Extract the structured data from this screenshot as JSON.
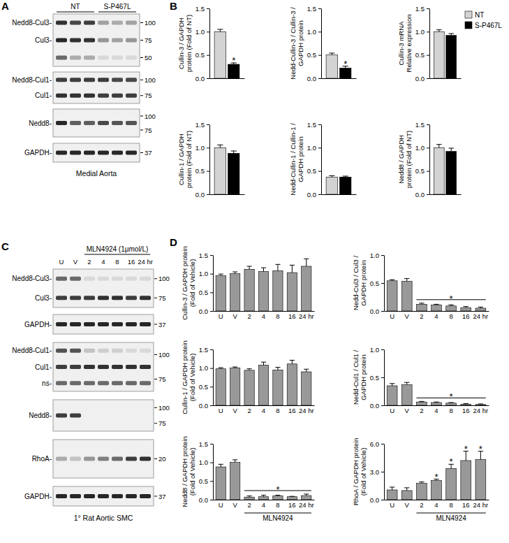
{
  "chart_data": [
    {
      "type": "bar",
      "ylabel": [
        "Cullin-3 / GAPDH",
        "protein (Fold of NT)"
      ],
      "categories": [
        null
      ],
      "series": [
        {
          "color": "#d3d3d3",
          "values": [
            1.0
          ],
          "errors": [
            0.05
          ]
        },
        {
          "color": "#000000",
          "values": [
            0.3
          ],
          "errors": [
            0.03
          ]
        }
      ],
      "ylim": [
        0,
        1.5
      ],
      "yticks": [
        {
          "value": 0,
          "label": "0.0"
        },
        0.5,
        {
          "value": 1,
          "label": "1.0"
        },
        1.5
      ],
      "annotations": [
        {
          "text": "*",
          "series": 1,
          "category": 0
        }
      ]
    },
    {
      "type": "bar",
      "ylabel": [
        "Nedd-Cullin-3 / Cullin-3 /",
        "GAPDH protein"
      ],
      "categories": [
        null
      ],
      "series": [
        {
          "color": "#d3d3d3",
          "values": [
            0.5
          ],
          "errors": [
            0.04
          ]
        },
        {
          "color": "#000000",
          "values": [
            0.22
          ],
          "errors": [
            0.04
          ]
        }
      ],
      "ylim": [
        0,
        1.5
      ],
      "yticks": [
        {
          "value": 0,
          "label": "0.0"
        },
        0.5,
        {
          "value": 1,
          "label": "1.0"
        },
        1.5
      ],
      "annotations": [
        {
          "text": "*",
          "series": 1,
          "category": 0
        }
      ]
    },
    {
      "type": "bar",
      "ylabel": [
        "Cullin-3 mRNA",
        "Relative expression"
      ],
      "categories": [
        null
      ],
      "legend": "right",
      "series": [
        {
          "name": "NT",
          "color": "#d3d3d3",
          "values": [
            1.0
          ],
          "errors": [
            0.04
          ]
        },
        {
          "name": "S-P467L",
          "color": "#000000",
          "values": [
            0.92
          ],
          "errors": [
            0.04
          ]
        }
      ],
      "ylim": [
        0,
        1.5
      ],
      "yticks": [
        {
          "value": 0,
          "label": "0.0"
        },
        0.5,
        {
          "value": 1,
          "label": "1.0"
        },
        1.5
      ]
    },
    {
      "type": "bar",
      "ylabel": [
        "Cullin-1 / GAPDH",
        "protein (Fold of NT)"
      ],
      "categories": [
        null
      ],
      "series": [
        {
          "color": "#d3d3d3",
          "values": [
            1.0
          ],
          "errors": [
            0.06
          ]
        },
        {
          "color": "#000000",
          "values": [
            0.88
          ],
          "errors": [
            0.05
          ]
        }
      ],
      "ylim": [
        0,
        1.5
      ],
      "yticks": [
        {
          "value": 0,
          "label": "0.0"
        },
        0.5,
        {
          "value": 1,
          "label": "1.0"
        },
        1.5
      ]
    },
    {
      "type": "bar",
      "ylabel": [
        "Nedd-Cullin-1 / Cullin-1 /",
        "GAPDH protein"
      ],
      "categories": [
        null
      ],
      "series": [
        {
          "color": "#d3d3d3",
          "values": [
            0.37
          ],
          "errors": [
            0.03
          ]
        },
        {
          "color": "#000000",
          "values": [
            0.37
          ],
          "errors": [
            0.02
          ]
        }
      ],
      "ylim": [
        0,
        1.5
      ],
      "yticks": [
        {
          "value": 0,
          "label": "0.0"
        },
        0.5,
        {
          "value": 1,
          "label": "1.0"
        },
        1.5
      ]
    },
    {
      "type": "bar",
      "ylabel": [
        "Nedd8 / GAPDH",
        "protein (Fold of NT)"
      ],
      "categories": [
        null
      ],
      "series": [
        {
          "color": "#d3d3d3",
          "values": [
            1.0
          ],
          "errors": [
            0.07
          ]
        },
        {
          "color": "#000000",
          "values": [
            0.92
          ],
          "errors": [
            0.07
          ]
        }
      ],
      "ylim": [
        0,
        1.5
      ],
      "yticks": [
        {
          "value": 0,
          "label": "0.0"
        },
        0.5,
        {
          "value": 1,
          "label": "1.0"
        },
        1.5
      ]
    },
    {
      "type": "bar",
      "ylabel": [
        "Cullin-3 / GAPDH protein",
        "(Fold of Vehicle)"
      ],
      "categories": [
        "U",
        "V",
        "2",
        "4",
        "8",
        "16",
        "24 hr"
      ],
      "series": [
        {
          "color": "#999999",
          "values": [
            0.95,
            1.0,
            1.12,
            1.06,
            1.08,
            1.03,
            1.2
          ],
          "errors": [
            0.04,
            0.05,
            0.08,
            0.1,
            0.17,
            0.2,
            0.2
          ]
        }
      ],
      "ylim": [
        0,
        1.5
      ],
      "yticks": [
        {
          "value": 0,
          "label": "0.0"
        },
        0.5,
        {
          "value": 1,
          "label": "1.0"
        },
        1.5
      ]
    },
    {
      "type": "bar",
      "ylabel": [
        "Nedd-Cul3 / Cul3 /",
        "GAPDH protein"
      ],
      "categories": [
        "U",
        "V",
        "2",
        "4",
        "8",
        "16",
        "24 hr"
      ],
      "series": [
        {
          "color": "#999999",
          "values": [
            0.54,
            0.53,
            0.12,
            0.11,
            0.09,
            0.06,
            0.05
          ],
          "errors": [
            0.02,
            0.05,
            0.02,
            0.01,
            0.02,
            0.02,
            0.02
          ]
        }
      ],
      "ylim": [
        0,
        1
      ],
      "yticks": [
        {
          "value": 0,
          "label": "0.0"
        },
        0.5,
        {
          "value": 1,
          "label": "1.0"
        }
      ],
      "annotations": [
        {
          "text": "*",
          "from": 2,
          "to": 6
        }
      ]
    },
    {
      "type": "bar",
      "ylabel": [
        "Cullin-1 / GAPDH protein",
        "(Fold of Vehicle)"
      ],
      "categories": [
        "U",
        "V",
        "2",
        "4",
        "8",
        "16",
        "24 hr"
      ],
      "series": [
        {
          "color": "#999999",
          "values": [
            0.98,
            1.0,
            0.94,
            1.08,
            0.95,
            1.11,
            0.9
          ],
          "errors": [
            0.03,
            0.03,
            0.04,
            0.08,
            0.07,
            0.1,
            0.07
          ]
        }
      ],
      "ylim": [
        0,
        1.5
      ],
      "yticks": [
        {
          "value": 0,
          "label": "0.0"
        },
        0.5,
        {
          "value": 1,
          "label": "1.0"
        },
        1.5
      ]
    },
    {
      "type": "bar",
      "ylabel": [
        "Nedd-Cul1 / Cul1 /",
        "GAPDH protein"
      ],
      "categories": [
        "U",
        "V",
        "2",
        "4",
        "8",
        "16",
        "24 hr"
      ],
      "series": [
        {
          "color": "#999999",
          "values": [
            0.35,
            0.37,
            0.06,
            0.05,
            0.04,
            0.02,
            0.015
          ],
          "errors": [
            0.04,
            0.04,
            0.01,
            0.01,
            0.01,
            0.01,
            0.01
          ]
        }
      ],
      "ylim": [
        0,
        1
      ],
      "yticks": [
        {
          "value": 0,
          "label": "0.0"
        },
        0.5,
        {
          "value": 1,
          "label": "1.0"
        }
      ],
      "annotations": [
        {
          "text": "*",
          "from": 2,
          "to": 6
        }
      ]
    },
    {
      "type": "bar",
      "ylabel": [
        "Nedd8 / GAPDH protein",
        "(Fold of Vehicle)"
      ],
      "categories": [
        "U",
        "V",
        "2",
        "4",
        "8",
        "16",
        "24 hr"
      ],
      "series": [
        {
          "color": "#999999",
          "values": [
            0.88,
            1.0,
            0.07,
            0.08,
            0.1,
            0.08,
            0.11
          ],
          "errors": [
            0.07,
            0.07,
            0.03,
            0.04,
            0.02,
            0.01,
            0.04
          ]
        }
      ],
      "ylim": [
        0,
        1.5
      ],
      "yticks": [
        {
          "value": 0,
          "label": "0.0"
        },
        0.5,
        {
          "value": 1,
          "label": "1.0"
        },
        1.5
      ],
      "annotations": [
        {
          "text": "*",
          "from": 2,
          "to": 6
        }
      ],
      "group_label": {
        "text": "MLN4924",
        "from": 2,
        "to": 6
      }
    },
    {
      "type": "bar",
      "ylabel": [
        "RhoA / GAPDH protein",
        "(Fold of Vehicle)"
      ],
      "categories": [
        "U",
        "V",
        "2",
        "4",
        "8",
        "16",
        "24 hr"
      ],
      "series": [
        {
          "color": "#999999",
          "values": [
            1.05,
            0.98,
            1.75,
            2.05,
            3.35,
            4.2,
            4.3
          ],
          "errors": [
            0.3,
            0.3,
            0.15,
            0.15,
            0.45,
            1.0,
            0.9
          ]
        }
      ],
      "ylim": [
        0,
        6
      ],
      "yticks": [
        {
          "value": 0,
          "label": "0.0"
        },
        {
          "value": 3,
          "label": "3.0"
        },
        {
          "value": 6,
          "label": "6.0"
        }
      ],
      "annotations": [
        {
          "text": "*",
          "category": 3
        },
        {
          "text": "*",
          "category": 4
        },
        {
          "text": "*",
          "category": 5
        },
        {
          "text": "*",
          "category": 6
        }
      ],
      "group_label": {
        "text": "MLN4924",
        "from": 2,
        "to": 6
      }
    }
  ],
  "panel_labels": [
    "A",
    "B",
    "C",
    "D"
  ],
  "blots": [
    {
      "caption": "Medial Aorta",
      "lane_groups": [
        {
          "label": "NT",
          "from": 0,
          "to": 2
        },
        {
          "label": "S-P467L",
          "from": 3,
          "to": 5
        }
      ],
      "rows": [
        {
          "bands": [
            {
              "label": "Nedd8-Cul3-",
              "intensity": [
                0.85,
                0.75,
                0.8,
                0.35,
                0.3,
                0.35
              ]
            },
            {
              "label": "Cul3-",
              "intensity": [
                0.9,
                0.85,
                0.85,
                0.4,
                0.35,
                0.4
              ]
            },
            {
              "label": null,
              "intensity": [
                0.6,
                0.3,
                0.3,
                0.1,
                0.1,
                0.1
              ]
            }
          ],
          "markers": [
            100,
            75,
            50
          ]
        },
        {
          "bands": [
            {
              "label": "Nedd8-Cul1-",
              "intensity": [
                0.8,
                0.8,
                0.8,
                0.8,
                0.75,
                0.75
              ]
            },
            {
              "label": "Cul1-",
              "intensity": [
                0.85,
                0.85,
                0.85,
                0.8,
                0.8,
                0.8
              ]
            }
          ],
          "markers": [
            100,
            75
          ]
        },
        {
          "bands": [
            {
              "label": "Nedd8-",
              "intensity": [
                0.9,
                0.65,
                0.65,
                0.75,
                0.7,
                0.7
              ]
            }
          ],
          "markers": [
            100,
            75
          ]
        },
        {
          "bands": [
            {
              "label": "GAPDH-",
              "intensity": [
                0.9,
                0.9,
                0.9,
                0.9,
                0.9,
                0.9
              ]
            }
          ],
          "markers": [
            37
          ]
        }
      ]
    },
    {
      "caption": "1° Rat Aortic SMC",
      "lane_labels": [
        "U",
        "V",
        "2",
        "4",
        "8",
        "16",
        "24 hr"
      ],
      "lane_groups": [
        {
          "label": "MLN4924 (1μmol/L)",
          "from": 2,
          "to": 6
        }
      ],
      "rows": [
        {
          "bands": [
            {
              "label": "Nedd8-Cul3-",
              "intensity": [
                0.6,
                0.6,
                0.1,
                0.1,
                0.1,
                0.1,
                0.1
              ]
            },
            {
              "label": "Cul3-",
              "intensity": [
                0.8,
                0.8,
                0.8,
                0.85,
                0.85,
                0.8,
                0.85
              ]
            }
          ],
          "markers": [
            100,
            75
          ]
        },
        {
          "bands": [
            {
              "label": "GAPDH-",
              "intensity": [
                0.9,
                0.9,
                0.9,
                0.9,
                0.9,
                0.9,
                0.9
              ]
            }
          ],
          "markers": [
            37
          ]
        },
        {
          "bands": [
            {
              "label": "Nedd8-Cul1-",
              "intensity": [
                0.7,
                0.7,
                0.2,
                0.15,
                0.15,
                0.1,
                0.1
              ]
            },
            {
              "label": "Cul1-",
              "intensity": [
                0.8,
                0.8,
                0.85,
                0.85,
                0.85,
                0.85,
                0.85
              ]
            },
            {
              "label": "ns-",
              "intensity": [
                0.6,
                0.6,
                0.6,
                0.6,
                0.6,
                0.6,
                0.6
              ]
            }
          ],
          "markers": [
            100,
            75
          ]
        },
        {
          "bands": [
            {
              "label": "Nedd8-",
              "intensity": [
                0.8,
                0.8,
                0,
                0,
                0,
                0,
                0
              ]
            }
          ],
          "markers": [
            100,
            75
          ]
        },
        {
          "bands": [
            {
              "label": "RhoA-",
              "intensity": [
                0.3,
                0.2,
                0.4,
                0.5,
                0.6,
                0.8,
                0.85
              ]
            }
          ],
          "markers": [
            20
          ]
        },
        {
          "bands": [
            {
              "label": "GAPDH-",
              "intensity": [
                0.9,
                0.9,
                0.9,
                0.9,
                0.9,
                0.9,
                0.9
              ]
            }
          ],
          "markers": [
            37
          ]
        }
      ]
    }
  ]
}
